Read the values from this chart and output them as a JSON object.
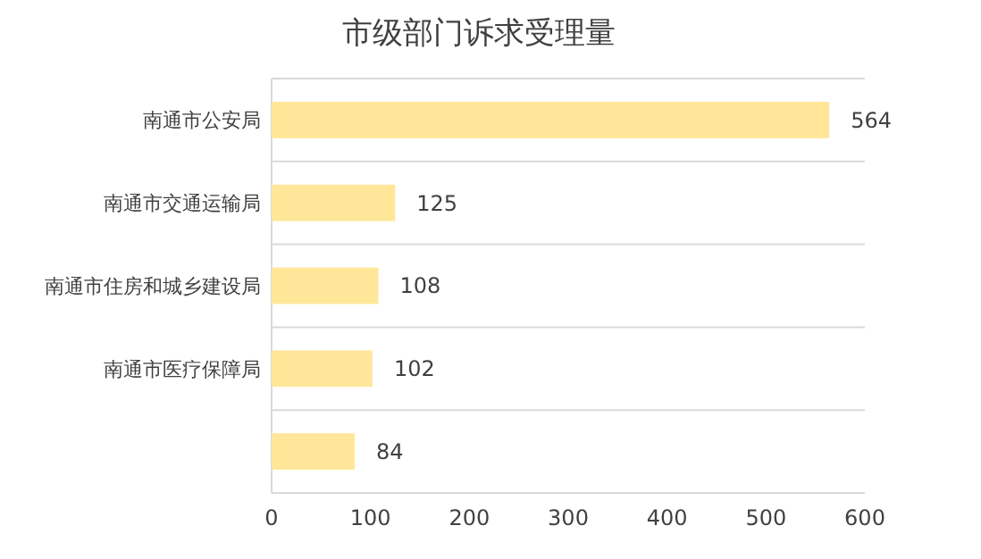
{
  "chart_data": {
    "type": "bar",
    "orientation": "horizontal",
    "title": "市级部门诉求受理量",
    "categories": [
      "南通市公安局",
      "南通市交通运输局",
      "南通市住房和城乡建设局",
      "南通市医疗保障局",
      null
    ],
    "values": [
      564,
      125,
      108,
      102,
      84
    ],
    "color": "#ffe699",
    "data_labels": true,
    "grid": "y",
    "xlim": [
      0,
      600
    ],
    "xticks": [
      0,
      100,
      200,
      300,
      400,
      500,
      600
    ]
  }
}
